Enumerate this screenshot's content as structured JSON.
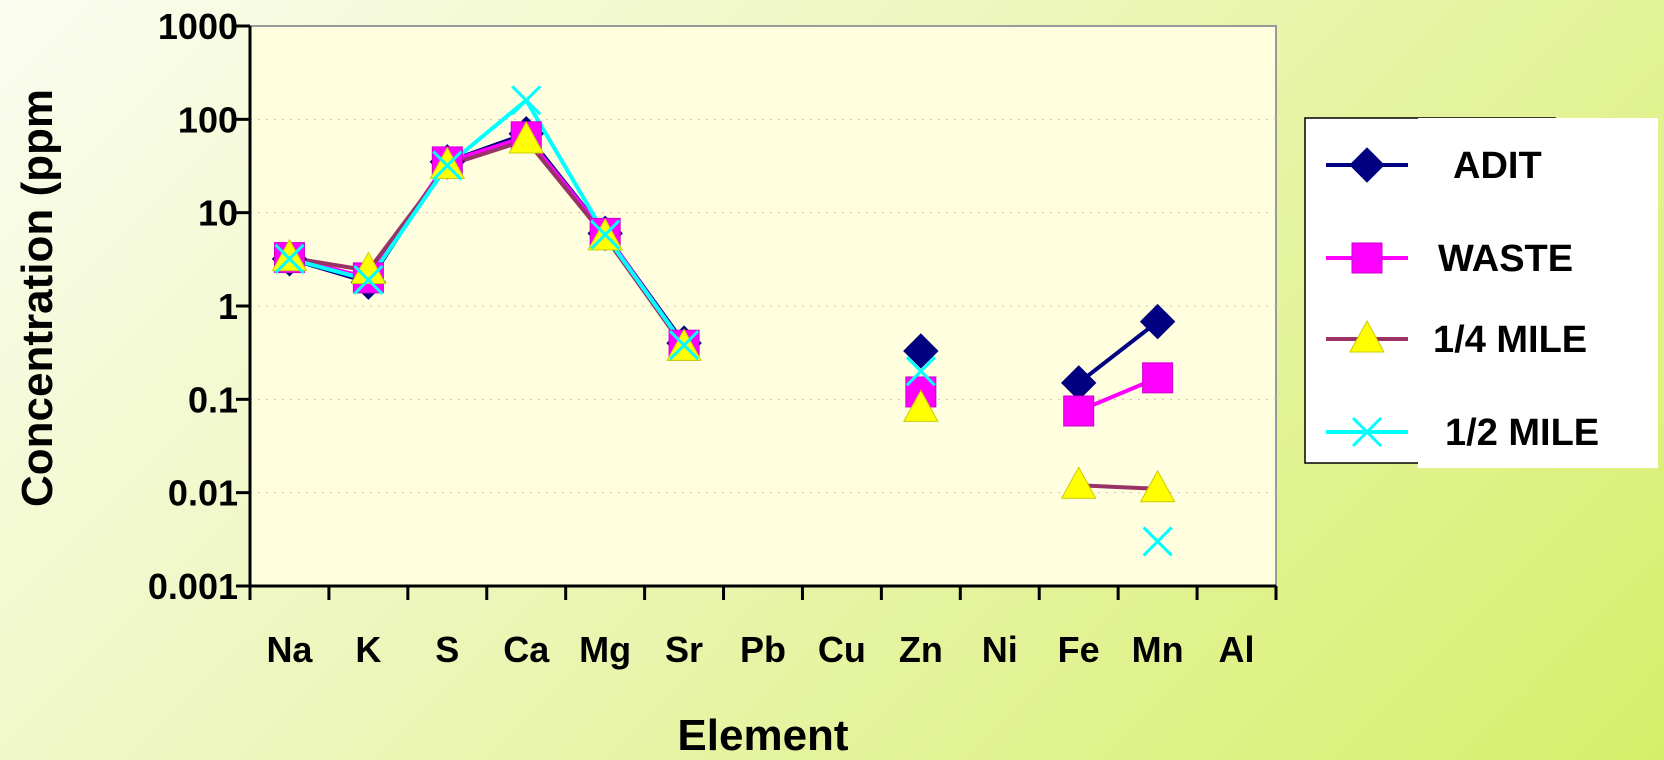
{
  "chart_data": {
    "type": "line",
    "xlabel": "Element",
    "ylabel": "Concentration (ppm",
    "yscale": "log",
    "ylim": [
      0.001,
      1000
    ],
    "yticks": [
      "1000",
      "100",
      "10",
      "1",
      "0.1",
      "0.01",
      "0.001"
    ],
    "categories": [
      "Na",
      "K",
      "S",
      "Ca",
      "Mg",
      "Sr",
      "Pb",
      "Cu",
      "Zn",
      "Ni",
      "Fe",
      "Mn",
      "Al"
    ],
    "grid": false,
    "legend": "right",
    "series": [
      {
        "name": "ADIT",
        "color": "#000080",
        "marker": "diamond",
        "values": [
          3.2,
          1.8,
          35,
          70,
          6,
          0.4,
          null,
          null,
          0.33,
          null,
          0.15,
          0.68,
          null
        ]
      },
      {
        "name": "WASTE",
        "color": "#ff00ff",
        "marker": "square",
        "values": [
          3.3,
          2.0,
          35,
          65,
          6,
          0.38,
          null,
          null,
          0.12,
          null,
          0.075,
          0.17,
          null
        ]
      },
      {
        "name": "1/4 MILE",
        "color": "#993366",
        "marker": "triangle",
        "marker_color": "#ffff00",
        "values": [
          3.3,
          2.4,
          32,
          60,
          5.5,
          0.36,
          null,
          null,
          0.08,
          null,
          0.012,
          0.011,
          null
        ]
      },
      {
        "name": "1/2 MILE",
        "color": "#00ffff",
        "marker": "x",
        "values": [
          3.2,
          1.9,
          32,
          160,
          5.8,
          0.38,
          null,
          null,
          0.2,
          null,
          null,
          0.003,
          null
        ]
      }
    ]
  }
}
